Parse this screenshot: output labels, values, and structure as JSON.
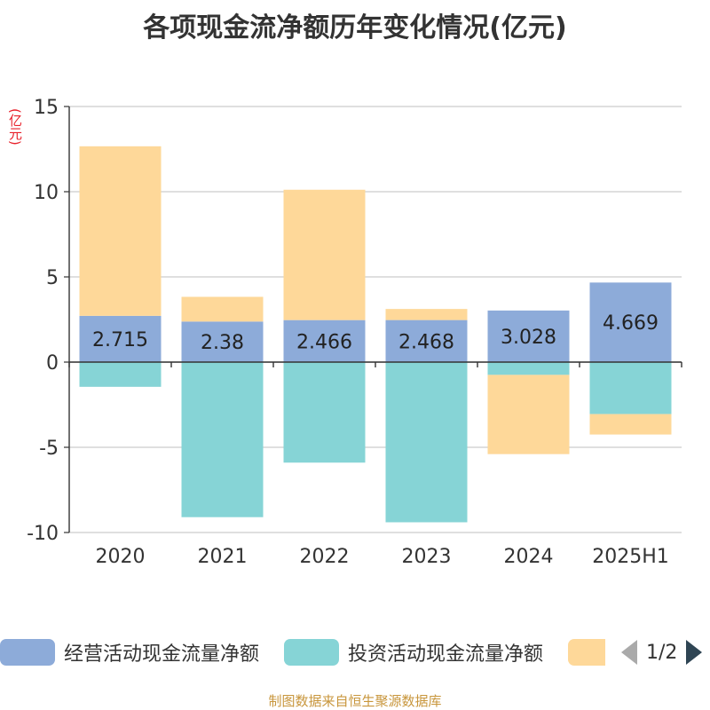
{
  "title": "各项现金流净额历年变化情况(亿元)",
  "unit_label": "(亿元)",
  "footer": "制图数据来自恒生聚源数据库",
  "legend": {
    "items": [
      {
        "label": "经营活动现金流量净额",
        "color": "#8dabd9"
      },
      {
        "label": "投资活动现金流量净额",
        "color": "#86d4d6"
      },
      {
        "label": "",
        "color": "#fed899"
      }
    ],
    "page": "1/2"
  },
  "chart_data": {
    "type": "bar",
    "stacked": true,
    "categories": [
      "2020",
      "2021",
      "2022",
      "2023",
      "2024",
      "2025H1"
    ],
    "ylim": [
      -10,
      15
    ],
    "yticks": [
      -10,
      -5,
      0,
      5,
      10,
      15
    ],
    "grid": true,
    "legend_position": "bottom",
    "series": [
      {
        "name": "经营活动现金流量净额",
        "color": "#8dabd9",
        "values": [
          2.715,
          2.38,
          2.466,
          2.468,
          3.028,
          4.669
        ],
        "labels": [
          "2.715",
          "2.38",
          "2.466",
          "2.468",
          "3.028",
          "4.669"
        ]
      },
      {
        "name": "投资活动现金流量净额",
        "color": "#86d4d6",
        "values": [
          -1.45,
          -9.1,
          -5.9,
          -9.4,
          -0.75,
          -3.05
        ]
      },
      {
        "name": "",
        "color": "#fed899",
        "values": [
          9.95,
          1.45,
          7.65,
          0.65,
          -4.65,
          -1.2
        ]
      }
    ]
  }
}
